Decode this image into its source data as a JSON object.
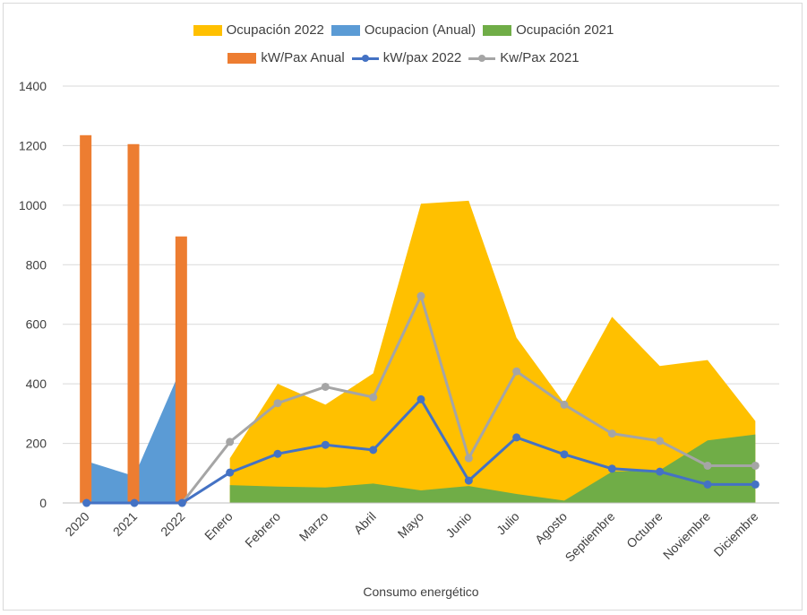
{
  "chart_data": {
    "type": "combo",
    "title": "",
    "xlabel": "Consumo energético",
    "ylabel": "",
    "ylim": [
      0,
      1400
    ],
    "yticks": [
      0,
      200,
      400,
      600,
      800,
      1000,
      1200,
      1400
    ],
    "grid": true,
    "legend_position": "top",
    "categories": [
      "2020",
      "2021",
      "2022",
      "Enero",
      "Febrero",
      "Marzo",
      "Abril",
      "Mayo",
      "Junio",
      "Julio",
      "Agosto",
      "Septiembre",
      "Octubre",
      "Noviembre",
      "Diciembre"
    ],
    "series": [
      {
        "name": "Ocupación 2022",
        "kind": "area",
        "color": "#FFC000",
        "values": [
          null,
          null,
          null,
          150,
          400,
          330,
          435,
          1005,
          1015,
          555,
          335,
          625,
          460,
          480,
          275
        ]
      },
      {
        "name": "Ocupacion (Anual)",
        "kind": "area",
        "color": "#5B9BD5",
        "values": [
          140,
          90,
          460,
          null,
          null,
          null,
          null,
          null,
          null,
          null,
          null,
          null,
          null,
          null,
          null
        ]
      },
      {
        "name": "Ocupación 2021",
        "kind": "area",
        "color": "#70AD47",
        "values": [
          null,
          null,
          null,
          60,
          55,
          52,
          65,
          42,
          57,
          30,
          8,
          105,
          110,
          210,
          230
        ]
      },
      {
        "name": "kW/Pax Anual",
        "kind": "bar",
        "color": "#ED7D31",
        "values": [
          1235,
          1205,
          895,
          null,
          null,
          null,
          null,
          null,
          null,
          null,
          null,
          null,
          null,
          null,
          null
        ]
      },
      {
        "name": "kW/pax 2022",
        "kind": "line",
        "color": "#4472C4",
        "values": [
          0,
          0,
          0,
          102,
          165,
          195,
          178,
          348,
          75,
          220,
          163,
          115,
          105,
          62,
          62
        ]
      },
      {
        "name": "Kw/Pax 2021",
        "kind": "line",
        "color": "#A5A5A5",
        "values": [
          0,
          0,
          0,
          205,
          335,
          390,
          355,
          695,
          150,
          442,
          330,
          233,
          208,
          125,
          125
        ]
      }
    ]
  },
  "legend": {
    "row1": [
      {
        "label": "Ocupación 2022",
        "color": "#FFC000",
        "swatch": "box"
      },
      {
        "label": "Ocupacion (Anual)",
        "color": "#5B9BD5",
        "swatch": "box"
      },
      {
        "label": "Ocupación 2021",
        "color": "#70AD47",
        "swatch": "box"
      }
    ],
    "row2": [
      {
        "label": "kW/Pax Anual",
        "color": "#ED7D31",
        "swatch": "box"
      },
      {
        "label": "kW/pax 2022",
        "color": "#4472C4",
        "swatch": "line"
      },
      {
        "label": "Kw/Pax 2021",
        "color": "#A5A5A5",
        "swatch": "line"
      }
    ]
  }
}
